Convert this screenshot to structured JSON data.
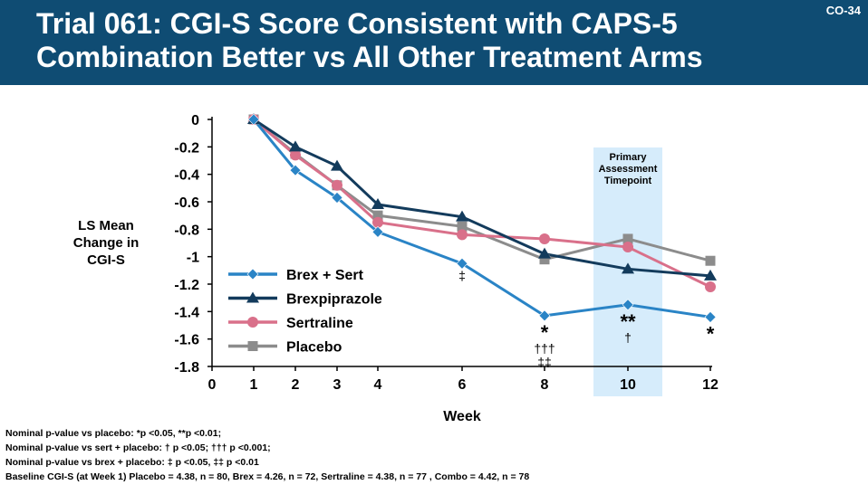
{
  "header": {
    "title_line1": "Trial 061: CGI-S Score Consistent with CAPS-5",
    "title_line2": "Combination Better vs All Other Treatment Arms",
    "slide_code": "CO-34"
  },
  "colors": {
    "header_bg": "#0f4c73",
    "brex_sert": "#2a84c6",
    "brexpiprazole": "#133b5c",
    "sertraline": "#d9708a",
    "placebo": "#8c8c8c",
    "highlight": "#d6ecfb"
  },
  "chart_data": {
    "type": "line",
    "ylabel": "LS Mean\nChange in\nCGI-S",
    "xlabel": "Week",
    "x_ticks": [
      0,
      1,
      2,
      3,
      4,
      6,
      8,
      10,
      12
    ],
    "y_ticks": [
      0,
      -0.2,
      -0.4,
      -0.6,
      -0.8,
      -1,
      -1.2,
      -1.4,
      -1.6,
      -1.8
    ],
    "y_tick_labels": [
      "0",
      "-0.2",
      "-0.4",
      "-0.6",
      "-0.8",
      "-1",
      "-1.2",
      "-1.4",
      "-1.6",
      "-1.8"
    ],
    "ylim": [
      -1.8,
      0
    ],
    "x": [
      1,
      2,
      3,
      4,
      6,
      8,
      10,
      12
    ],
    "series": [
      {
        "name": "Brex + Sert",
        "marker": "diamond",
        "color": "#2a84c6",
        "values": [
          0,
          -0.37,
          -0.57,
          -0.82,
          -1.05,
          -1.43,
          -1.35,
          -1.44
        ]
      },
      {
        "name": "Brexpiprazole",
        "marker": "triangle",
        "color": "#133b5c",
        "values": [
          0,
          -0.2,
          -0.34,
          -0.62,
          -0.71,
          -0.98,
          -1.09,
          -1.14
        ]
      },
      {
        "name": "Sertraline",
        "marker": "circle",
        "color": "#d9708a",
        "values": [
          0,
          -0.26,
          -0.48,
          -0.75,
          -0.84,
          -0.87,
          -0.93,
          -1.22
        ]
      },
      {
        "name": "Placebo",
        "marker": "square",
        "color": "#8c8c8c",
        "values": [
          0,
          -0.25,
          -0.48,
          -0.7,
          -0.78,
          -1.02,
          -0.87,
          -1.03
        ]
      }
    ],
    "highlight": {
      "label": "Primary\nAssessment\nTimepoint",
      "week": 10
    },
    "annotations": [
      {
        "week": 6,
        "lines": [
          "‡"
        ],
        "style": "small"
      },
      {
        "week": 8,
        "lines": [
          "*",
          "†††",
          "‡‡"
        ],
        "style": "mixed"
      },
      {
        "week": 10,
        "lines": [
          "**",
          "†"
        ],
        "style": "mixed"
      },
      {
        "week": 12,
        "lines": [
          "*"
        ],
        "style": "big"
      }
    ],
    "legend_position": "lower-left"
  },
  "footnotes": [
    "Nominal p-value vs placebo: *p <0.05, **p <0.01;",
    "Nominal p-value vs sert + placebo: † p <0.05; ††† p <0.001;",
    "Nominal p-value vs brex + placebo: ‡ p <0.05, ‡‡ p <0.01",
    "Baseline CGI-S (at Week 1) Placebo = 4.38, n = 80, Brex = 4.26, n = 72, Sertraline  =  4.38, n = 77 , Combo = 4.42, n = 78"
  ]
}
